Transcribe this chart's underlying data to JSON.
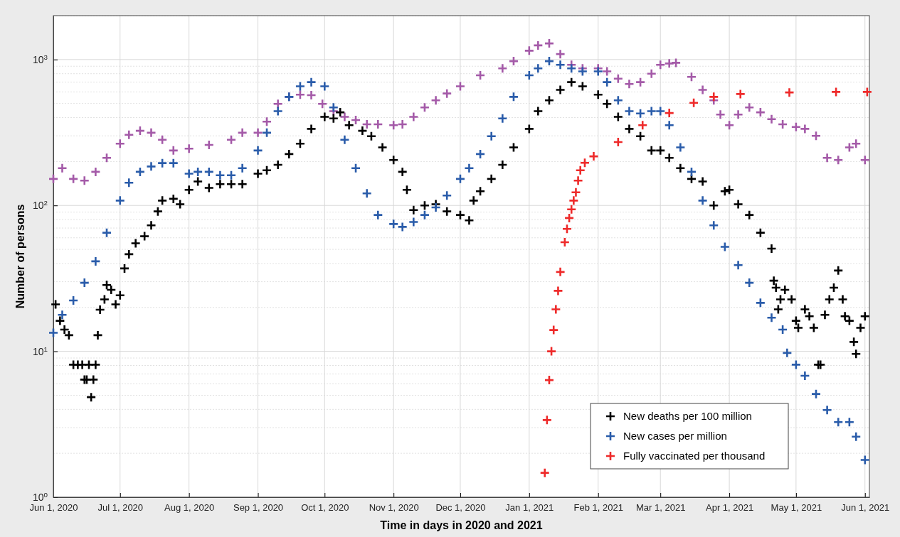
{
  "chart_data": {
    "type": "scatter",
    "xlabel": "Time in days in 2020 and 2021",
    "ylabel": "Number of persons",
    "log": "y",
    "grid": true,
    "legend": "bottom right",
    "marker": "cross",
    "xlim": [
      "2020-06-01",
      "2021-06-03"
    ],
    "xticks": [
      {
        "value": "2020-06-01",
        "label": "Jun 1, 2020"
      },
      {
        "value": "2020-07-01",
        "label": "Jul 1, 2020"
      },
      {
        "value": "2020-08-01",
        "label": "Aug 1, 2020"
      },
      {
        "value": "2020-09-01",
        "label": "Sep 1, 2020"
      },
      {
        "value": "2020-10-01",
        "label": "Oct 1, 2020"
      },
      {
        "value": "2020-11-01",
        "label": "Nov 1, 2020"
      },
      {
        "value": "2020-12-01",
        "label": "Dec 1, 2020"
      },
      {
        "value": "2021-01-01",
        "label": "Jan 1, 2021"
      },
      {
        "value": "2021-02-01",
        "label": "Feb 1, 2021"
      },
      {
        "value": "2021-03-01",
        "label": "Mar 1, 2021"
      },
      {
        "value": "2021-04-01",
        "label": "Apr 1, 2021"
      },
      {
        "value": "2021-05-01",
        "label": "May 1, 2021"
      },
      {
        "value": "2021-06-01",
        "label": "Jun 1, 2021"
      }
    ],
    "ylim": [
      1,
      2000
    ],
    "yticks": [
      {
        "value": 1,
        "label": "10$^{0}$"
      },
      {
        "value": 10,
        "label": "10$^{1}$"
      },
      {
        "value": 100,
        "label": "10$^{2}$"
      },
      {
        "value": 1000,
        "label": "10$^{3}$"
      }
    ],
    "series": [
      {
        "color": "#a45aa8",
        "x": [
          "2020-06-01",
          "2020-06-05",
          "2020-06-10",
          "2020-06-15",
          "2020-06-20",
          "2020-06-25",
          "2020-07-01",
          "2020-07-05",
          "2020-07-10",
          "2020-07-15",
          "2020-07-20",
          "2020-07-25",
          "2020-08-01",
          "2020-08-10",
          "2020-08-20",
          "2020-08-25",
          "2020-09-01",
          "2020-09-05",
          "2020-09-10",
          "2020-09-15",
          "2020-09-20",
          "2020-09-25",
          "2020-09-30",
          "2020-10-05",
          "2020-10-10",
          "2020-10-15",
          "2020-10-20",
          "2020-10-25",
          "2020-11-01",
          "2020-11-05",
          "2020-11-10",
          "2020-11-15",
          "2020-11-20",
          "2020-11-25",
          "2020-12-01",
          "2020-12-10",
          "2020-12-20",
          "2020-12-25",
          "2021-01-01",
          "2021-01-05",
          "2021-01-10",
          "2021-01-15",
          "2021-01-20",
          "2021-01-25",
          "2021-02-01",
          "2021-02-05",
          "2021-02-10",
          "2021-02-15",
          "2021-02-20",
          "2021-02-25",
          "2021-03-01",
          "2021-03-05",
          "2021-03-08",
          "2021-03-15",
          "2021-03-20",
          "2021-03-25",
          "2021-03-28",
          "2021-04-01",
          "2021-04-05",
          "2021-04-10",
          "2021-04-15",
          "2021-04-20",
          "2021-04-25",
          "2021-05-01",
          "2021-05-05",
          "2021-05-10",
          "2021-05-15",
          "2021-05-20",
          "2021-05-25",
          "2021-05-28",
          "2021-06-01"
        ],
        "values": [
          152,
          180,
          152,
          148,
          170,
          212,
          265,
          305,
          325,
          315,
          282,
          238,
          245,
          260,
          282,
          315,
          315,
          375,
          497,
          555,
          575,
          570,
          497,
          443,
          405,
          385,
          360,
          360,
          355,
          360,
          405,
          470,
          525,
          585,
          655,
          780,
          870,
          975,
          1150,
          1250,
          1290,
          1090,
          920,
          870,
          870,
          830,
          740,
          680,
          700,
          800,
          920,
          940,
          950,
          760,
          620,
          525,
          420,
          355,
          420,
          470,
          435,
          390,
          360,
          345,
          335,
          300,
          212,
          205,
          250,
          265,
          205
        ]
      },
      {
        "name": "New deaths per 100 million",
        "color": "#000000",
        "x": [
          "2020-06-02",
          "2020-06-04",
          "2020-06-06",
          "2020-06-08",
          "2020-06-10",
          "2020-06-12",
          "2020-06-14",
          "2020-06-15",
          "2020-06-16",
          "2020-06-17",
          "2020-06-18",
          "2020-06-19",
          "2020-06-20",
          "2020-06-21",
          "2020-06-22",
          "2020-06-24",
          "2020-06-25",
          "2020-06-27",
          "2020-06-29",
          "2020-07-01",
          "2020-07-03",
          "2020-07-05",
          "2020-07-08",
          "2020-07-12",
          "2020-07-15",
          "2020-07-18",
          "2020-07-20",
          "2020-07-25",
          "2020-07-28",
          "2020-08-01",
          "2020-08-05",
          "2020-08-10",
          "2020-08-15",
          "2020-08-20",
          "2020-08-25",
          "2020-09-01",
          "2020-09-05",
          "2020-09-10",
          "2020-09-15",
          "2020-09-20",
          "2020-09-25",
          "2020-10-01",
          "2020-10-05",
          "2020-10-08",
          "2020-10-12",
          "2020-10-18",
          "2020-10-22",
          "2020-10-27",
          "2020-11-01",
          "2020-11-05",
          "2020-11-07",
          "2020-11-10",
          "2020-11-15",
          "2020-11-20",
          "2020-11-25",
          "2020-12-01",
          "2020-12-05",
          "2020-12-07",
          "2020-12-10",
          "2020-12-15",
          "2020-12-20",
          "2020-12-25",
          "2021-01-01",
          "2021-01-05",
          "2021-01-10",
          "2021-01-15",
          "2021-01-20",
          "2021-01-25",
          "2021-02-01",
          "2021-02-05",
          "2021-02-10",
          "2021-02-15",
          "2021-02-20",
          "2021-02-25",
          "2021-03-01",
          "2021-03-05",
          "2021-03-10",
          "2021-03-15",
          "2021-03-20",
          "2021-03-25",
          "2021-03-30",
          "2021-04-01",
          "2021-04-05",
          "2021-04-10",
          "2021-04-15",
          "2021-04-20",
          "2021-04-21",
          "2021-04-22",
          "2021-04-23",
          "2021-04-24",
          "2021-04-26",
          "2021-04-29",
          "2021-05-01",
          "2021-05-02",
          "2021-05-05",
          "2021-05-07",
          "2021-05-09",
          "2021-05-11",
          "2021-05-12",
          "2021-05-14",
          "2021-05-16",
          "2021-05-18",
          "2021-05-20",
          "2021-05-22",
          "2021-05-23",
          "2021-05-25",
          "2021-05-27",
          "2021-05-28",
          "2021-05-30",
          "2021-06-01"
        ],
        "values": [
          21,
          16.2,
          14.1,
          12.9,
          8.1,
          8.1,
          8.1,
          6.4,
          6.4,
          8.1,
          4.85,
          6.4,
          8.1,
          12.9,
          19.3,
          22.7,
          28.5,
          26.4,
          21,
          24.2,
          37,
          46.3,
          55,
          61.5,
          73,
          91,
          108,
          111,
          102,
          128,
          146,
          132,
          140,
          140,
          140,
          165,
          174,
          190,
          225,
          265,
          335,
          405,
          395,
          435,
          355,
          325,
          298,
          250,
          205,
          170,
          128,
          93,
          100,
          102,
          91,
          86,
          79,
          108,
          125,
          152,
          190,
          250,
          335,
          443,
          525,
          620,
          700,
          655,
          575,
          497,
          405,
          335,
          298,
          238,
          238,
          212,
          180,
          152,
          146,
          100,
          125,
          128,
          102,
          86,
          65,
          50.6,
          30.5,
          27.3,
          19.4,
          22.7,
          26.4,
          22.7,
          16.2,
          14.5,
          19.4,
          17.4,
          14.5,
          8.1,
          8.1,
          17.8,
          22.7,
          27.3,
          35.8,
          22.7,
          17.4,
          16.2,
          11.6,
          9.6,
          14.5,
          17.4
        ]
      },
      {
        "name": "New cases per million",
        "color": "#2a5caa",
        "x": [
          "2020-06-01",
          "2020-06-05",
          "2020-06-10",
          "2020-06-15",
          "2020-06-20",
          "2020-06-25",
          "2020-07-01",
          "2020-07-05",
          "2020-07-10",
          "2020-07-15",
          "2020-07-20",
          "2020-07-25",
          "2020-08-01",
          "2020-08-05",
          "2020-08-10",
          "2020-08-15",
          "2020-08-20",
          "2020-08-25",
          "2020-09-01",
          "2020-09-05",
          "2020-09-10",
          "2020-09-15",
          "2020-09-20",
          "2020-09-25",
          "2020-10-01",
          "2020-10-05",
          "2020-10-10",
          "2020-10-15",
          "2020-10-20",
          "2020-10-25",
          "2020-11-01",
          "2020-11-05",
          "2020-11-10",
          "2020-11-15",
          "2020-11-20",
          "2020-11-25",
          "2020-12-01",
          "2020-12-05",
          "2020-12-10",
          "2020-12-15",
          "2020-12-20",
          "2020-12-25",
          "2021-01-01",
          "2021-01-05",
          "2021-01-10",
          "2021-01-15",
          "2021-01-20",
          "2021-01-25",
          "2021-02-01",
          "2021-02-05",
          "2021-02-10",
          "2021-02-15",
          "2021-02-20",
          "2021-02-25",
          "2021-03-01",
          "2021-03-05",
          "2021-03-10",
          "2021-03-15",
          "2021-03-20",
          "2021-03-25",
          "2021-03-30",
          "2021-04-05",
          "2021-04-10",
          "2021-04-15",
          "2021-04-20",
          "2021-04-25",
          "2021-04-27",
          "2021-05-01",
          "2021-05-05",
          "2021-05-10",
          "2021-05-15",
          "2021-05-20",
          "2021-05-25",
          "2021-05-28",
          "2021-06-01"
        ],
        "values": [
          13.4,
          17.8,
          22.3,
          29.5,
          41.4,
          65,
          108,
          143,
          170,
          185,
          195,
          195,
          165,
          170,
          170,
          161,
          161,
          180,
          238,
          315,
          443,
          555,
          655,
          700,
          655,
          470,
          282,
          180,
          121,
          86,
          74.6,
          71.3,
          77,
          86,
          97,
          117,
          152,
          180,
          225,
          298,
          395,
          555,
          780,
          870,
          975,
          920,
          870,
          830,
          830,
          700,
          525,
          443,
          427,
          443,
          443,
          355,
          250,
          170,
          108,
          73,
          52,
          39,
          29.5,
          21.5,
          17,
          14.1,
          9.75,
          8.1,
          6.8,
          5.1,
          3.96,
          3.27,
          3.27,
          2.6,
          1.8
        ]
      },
      {
        "name": "Fully vaccinated per thousand",
        "color": "#ee2a2a",
        "x": [
          "2021-01-08",
          "2021-01-09",
          "2021-01-10",
          "2021-01-11",
          "2021-01-12",
          "2021-01-13",
          "2021-01-14",
          "2021-01-15",
          "2021-01-17",
          "2021-01-18",
          "2021-01-19",
          "2021-01-20",
          "2021-01-21",
          "2021-01-22",
          "2021-01-23",
          "2021-01-24",
          "2021-01-26",
          "2021-01-30",
          "2021-02-10",
          "2021-02-21",
          "2021-03-05",
          "2021-03-16",
          "2021-03-25",
          "2021-04-06",
          "2021-04-28",
          "2021-05-19",
          "2021-06-02"
        ],
        "values": [
          1.47,
          3.38,
          6.35,
          10,
          14,
          19.4,
          26,
          35,
          56,
          69,
          82,
          94,
          108,
          123,
          148,
          174,
          196,
          217,
          272,
          355,
          430,
          505,
          555,
          580,
          595,
          600,
          600
        ]
      }
    ]
  }
}
